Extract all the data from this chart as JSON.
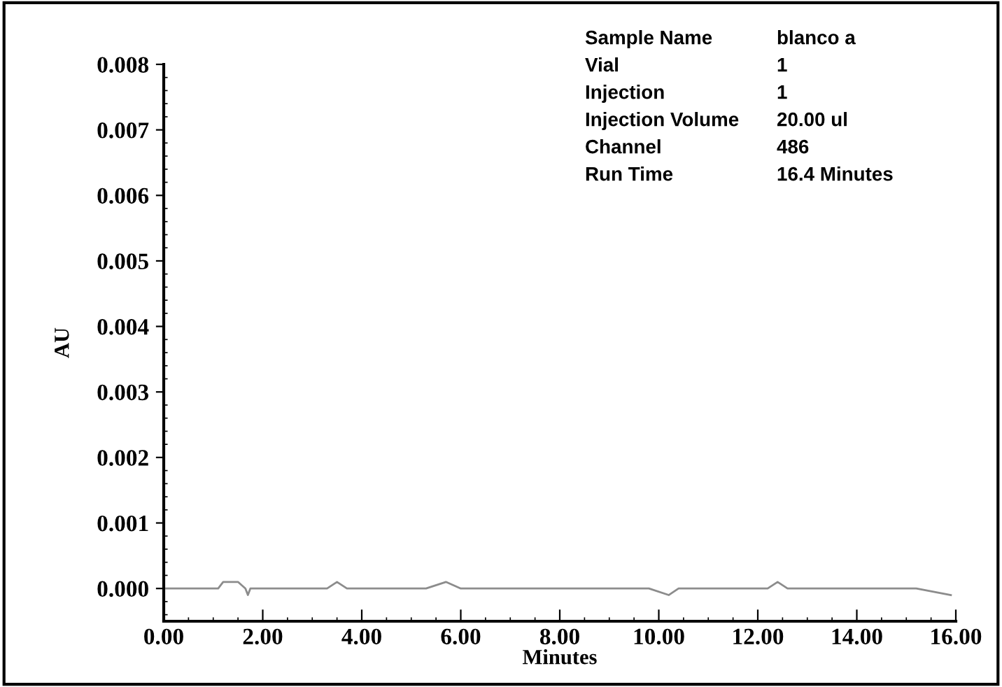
{
  "chart_data": {
    "type": "line",
    "xlabel": "Minutes",
    "ylabel": "AU",
    "x": [
      0.05,
      0.5,
      0.9,
      1.0,
      1.1,
      1.2,
      1.3,
      1.5,
      1.65,
      1.7,
      1.75,
      1.9,
      2.2,
      2.8,
      3.3,
      3.5,
      3.7,
      4.2,
      4.5,
      4.8,
      5.3,
      5.7,
      6.0,
      6.5,
      7.2,
      7.5,
      7.7,
      8.2,
      8.7,
      8.9,
      9.2,
      9.8,
      10.2,
      10.4,
      10.6,
      11.2,
      11.8,
      12.0,
      12.2,
      12.4,
      12.6,
      13.2,
      14.0,
      14.8,
      15.2,
      15.9
    ],
    "series": [
      {
        "color": "#8c8c8c",
        "values": [
          0.0,
          0.0,
          0.0,
          0.0,
          0.0,
          0.0001,
          0.0001,
          0.0001,
          0.0,
          -0.0001,
          0.0,
          0.0,
          0.0,
          0.0,
          0.0,
          0.0001,
          0.0,
          0.0,
          0.0,
          0.0,
          0.0,
          0.0001,
          0.0,
          0.0,
          0.0,
          0.0,
          0.0,
          0.0,
          0.0,
          0.0,
          0.0,
          0.0,
          -0.0001,
          0.0,
          0.0,
          0.0,
          0.0,
          0.0,
          0.0,
          0.0001,
          0.0,
          0.0,
          0.0,
          0.0,
          0.0,
          -0.0001
        ]
      }
    ],
    "xlim": [
      0,
      16
    ],
    "xticks": [
      {
        "value": 0,
        "label": "0.00"
      },
      {
        "value": 2,
        "label": "2.00"
      },
      {
        "value": 4,
        "label": "4.00"
      },
      {
        "value": 6,
        "label": "6.00"
      },
      {
        "value": 8,
        "label": "8.00"
      },
      {
        "value": 10,
        "label": "10.00"
      },
      {
        "value": 12,
        "label": "12.00"
      },
      {
        "value": 14,
        "label": "14.00"
      },
      {
        "value": 16,
        "label": "16.00"
      }
    ],
    "ylim": [
      -0.0005,
      0.008
    ],
    "yticks": [
      {
        "value": 0,
        "label": "0.000"
      },
      {
        "value": 0.001,
        "label": "0.001"
      },
      {
        "value": 0.002,
        "label": "0.002"
      },
      {
        "value": 0.003,
        "label": "0.003"
      },
      {
        "value": 0.004,
        "label": "0.004"
      },
      {
        "value": 0.005,
        "label": "0.005"
      },
      {
        "value": 0.006,
        "label": "0.006"
      },
      {
        "value": 0.007,
        "label": "0.007"
      },
      {
        "value": 0.008,
        "label": "0.008"
      }
    ],
    "grid": false,
    "marker": "none",
    "line_style": "solid",
    "annotations": [
      "Sample Name",
      "blanco a",
      "Vial",
      "1",
      "Injection",
      "1",
      "Injection Volume",
      "20.00 ul",
      "Channel",
      "486",
      "Run Time",
      "16.4 Minutes"
    ]
  }
}
